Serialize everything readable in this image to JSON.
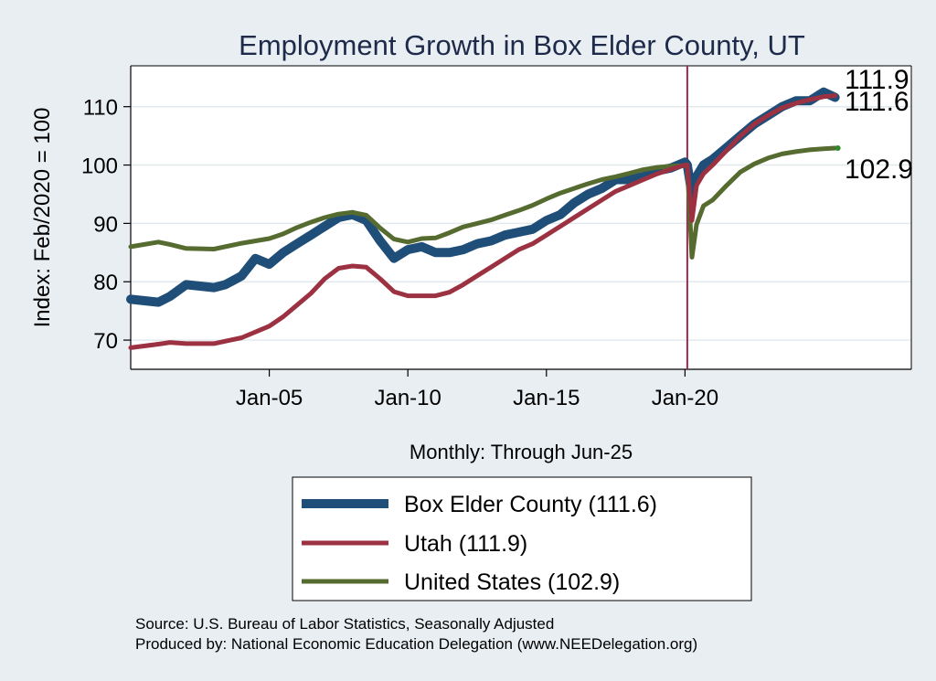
{
  "chart_data": {
    "type": "line",
    "title": "Employment Growth in Box Elder  County, UT",
    "ylabel": "Index: Feb/2020 = 100",
    "xlabel": "Monthly: Through Jun-25",
    "ylim": [
      65,
      117
    ],
    "xlim": [
      "2000-01",
      "2028-03"
    ],
    "yticks": [
      70,
      80,
      90,
      100,
      110
    ],
    "xticks": [
      "Jan-05",
      "Jan-10",
      "Jan-15",
      "Jan-20"
    ],
    "xtick_dates": [
      "2005-01",
      "2010-01",
      "2015-01",
      "2020-01"
    ],
    "grid": "horizontal",
    "reference_line": {
      "date": "2020-02",
      "color": "#a3284a"
    },
    "legend_position": "bottom",
    "series": [
      {
        "name": "Box Elder  County (111.6)",
        "color": "#1f4e79",
        "end_label": "111.6",
        "points": [
          [
            "2000-01",
            77.0
          ],
          [
            "2001-01",
            76.5
          ],
          [
            "2001-06",
            77.5
          ],
          [
            "2002-01",
            79.5
          ],
          [
            "2003-01",
            79.0
          ],
          [
            "2003-06",
            79.5
          ],
          [
            "2004-01",
            81.0
          ],
          [
            "2004-07",
            84.0
          ],
          [
            "2005-01",
            83.0
          ],
          [
            "2005-07",
            85.0
          ],
          [
            "2006-01",
            86.5
          ],
          [
            "2006-07",
            88.0
          ],
          [
            "2007-01",
            89.5
          ],
          [
            "2007-07",
            91.0
          ],
          [
            "2008-01",
            91.5
          ],
          [
            "2008-07",
            90.5
          ],
          [
            "2009-01",
            87.0
          ],
          [
            "2009-07",
            84.0
          ],
          [
            "2010-01",
            85.5
          ],
          [
            "2010-07",
            86.0
          ],
          [
            "2011-01",
            85.0
          ],
          [
            "2011-07",
            85.0
          ],
          [
            "2012-01",
            85.5
          ],
          [
            "2012-07",
            86.5
          ],
          [
            "2013-01",
            87.0
          ],
          [
            "2013-07",
            88.0
          ],
          [
            "2014-01",
            88.5
          ],
          [
            "2014-07",
            89.0
          ],
          [
            "2015-01",
            90.5
          ],
          [
            "2015-07",
            91.5
          ],
          [
            "2016-01",
            93.5
          ],
          [
            "2016-07",
            95.0
          ],
          [
            "2017-01",
            96.0
          ],
          [
            "2017-07",
            97.5
          ],
          [
            "2018-01",
            97.5
          ],
          [
            "2018-07",
            98.0
          ],
          [
            "2019-01",
            99.0
          ],
          [
            "2019-07",
            99.5
          ],
          [
            "2020-01",
            100.5
          ],
          [
            "2020-02",
            100.0
          ],
          [
            "2020-04",
            95.0
          ],
          [
            "2020-06",
            98.0
          ],
          [
            "2020-09",
            100.0
          ],
          [
            "2021-01",
            101.0
          ],
          [
            "2021-07",
            103.0
          ],
          [
            "2022-01",
            105.0
          ],
          [
            "2022-07",
            107.0
          ],
          [
            "2023-01",
            108.5
          ],
          [
            "2023-07",
            110.0
          ],
          [
            "2024-01",
            111.0
          ],
          [
            "2024-07",
            111.0
          ],
          [
            "2025-01",
            112.5
          ],
          [
            "2025-06",
            111.6
          ]
        ]
      },
      {
        "name": "Utah (111.9)",
        "color": "#9c3241",
        "end_label": "111.9",
        "points": [
          [
            "2000-01",
            68.7
          ],
          [
            "2001-01",
            69.3
          ],
          [
            "2001-06",
            69.6
          ],
          [
            "2002-01",
            69.4
          ],
          [
            "2003-01",
            69.4
          ],
          [
            "2004-01",
            70.4
          ],
          [
            "2005-01",
            72.4
          ],
          [
            "2005-07",
            74.0
          ],
          [
            "2006-01",
            76.0
          ],
          [
            "2006-07",
            78.0
          ],
          [
            "2007-01",
            80.5
          ],
          [
            "2007-07",
            82.3
          ],
          [
            "2008-01",
            82.7
          ],
          [
            "2008-07",
            82.5
          ],
          [
            "2009-01",
            80.5
          ],
          [
            "2009-07",
            78.3
          ],
          [
            "2010-01",
            77.6
          ],
          [
            "2010-07",
            77.6
          ],
          [
            "2011-01",
            77.6
          ],
          [
            "2011-07",
            78.2
          ],
          [
            "2012-01",
            79.5
          ],
          [
            "2012-07",
            81.0
          ],
          [
            "2013-01",
            82.5
          ],
          [
            "2013-07",
            84.0
          ],
          [
            "2014-01",
            85.5
          ],
          [
            "2014-07",
            86.5
          ],
          [
            "2015-01",
            88.0
          ],
          [
            "2015-07",
            89.5
          ],
          [
            "2016-01",
            91.0
          ],
          [
            "2016-07",
            92.5
          ],
          [
            "2017-01",
            94.0
          ],
          [
            "2017-07",
            95.5
          ],
          [
            "2018-01",
            96.5
          ],
          [
            "2018-07",
            97.5
          ],
          [
            "2019-01",
            98.5
          ],
          [
            "2019-07",
            99.3
          ],
          [
            "2020-01",
            100.0
          ],
          [
            "2020-02",
            100.0
          ],
          [
            "2020-04",
            90.5
          ],
          [
            "2020-06",
            96.5
          ],
          [
            "2020-09",
            98.5
          ],
          [
            "2021-01",
            100.0
          ],
          [
            "2021-07",
            102.5
          ],
          [
            "2022-01",
            105.0
          ],
          [
            "2022-07",
            107.0
          ],
          [
            "2023-01",
            108.5
          ],
          [
            "2023-07",
            109.8
          ],
          [
            "2024-01",
            110.6
          ],
          [
            "2024-07",
            111.2
          ],
          [
            "2025-01",
            111.7
          ],
          [
            "2025-06",
            111.9
          ]
        ]
      },
      {
        "name": "United States (102.9)",
        "color": "#566b2f",
        "end_label": "102.9",
        "points": [
          [
            "2000-01",
            86.0
          ],
          [
            "2001-01",
            86.8
          ],
          [
            "2001-06",
            86.4
          ],
          [
            "2002-01",
            85.7
          ],
          [
            "2003-01",
            85.6
          ],
          [
            "2004-01",
            86.6
          ],
          [
            "2005-01",
            87.4
          ],
          [
            "2005-07",
            88.2
          ],
          [
            "2006-01",
            89.3
          ],
          [
            "2006-07",
            90.2
          ],
          [
            "2007-01",
            91.0
          ],
          [
            "2007-07",
            91.6
          ],
          [
            "2008-01",
            91.9
          ],
          [
            "2008-07",
            91.4
          ],
          [
            "2009-01",
            89.2
          ],
          [
            "2009-07",
            87.3
          ],
          [
            "2010-01",
            86.8
          ],
          [
            "2010-07",
            87.4
          ],
          [
            "2011-01",
            87.5
          ],
          [
            "2011-07",
            88.4
          ],
          [
            "2012-01",
            89.4
          ],
          [
            "2012-07",
            90.0
          ],
          [
            "2013-01",
            90.6
          ],
          [
            "2013-07",
            91.4
          ],
          [
            "2014-01",
            92.2
          ],
          [
            "2014-07",
            93.1
          ],
          [
            "2015-01",
            94.2
          ],
          [
            "2015-07",
            95.2
          ],
          [
            "2016-01",
            96.0
          ],
          [
            "2016-07",
            96.8
          ],
          [
            "2017-01",
            97.5
          ],
          [
            "2017-07",
            98.0
          ],
          [
            "2018-01",
            98.6
          ],
          [
            "2018-07",
            99.2
          ],
          [
            "2019-01",
            99.6
          ],
          [
            "2019-07",
            99.8
          ],
          [
            "2020-01",
            99.9
          ],
          [
            "2020-02",
            100.0
          ],
          [
            "2020-04",
            84.2
          ],
          [
            "2020-06",
            89.8
          ],
          [
            "2020-09",
            93.0
          ],
          [
            "2021-01",
            94.0
          ],
          [
            "2021-07",
            96.5
          ],
          [
            "2022-01",
            98.8
          ],
          [
            "2022-07",
            100.2
          ],
          [
            "2023-01",
            101.2
          ],
          [
            "2023-07",
            101.9
          ],
          [
            "2024-01",
            102.3
          ],
          [
            "2024-07",
            102.6
          ],
          [
            "2025-01",
            102.8
          ],
          [
            "2025-06",
            102.9
          ]
        ]
      }
    ]
  },
  "footer": {
    "source": "Source: U.S. Bureau of Labor Statistics, Seasonally Adjusted",
    "produced_by": "Produced by: National Economic Education Delegation (www.NEEDelegation.org)"
  }
}
